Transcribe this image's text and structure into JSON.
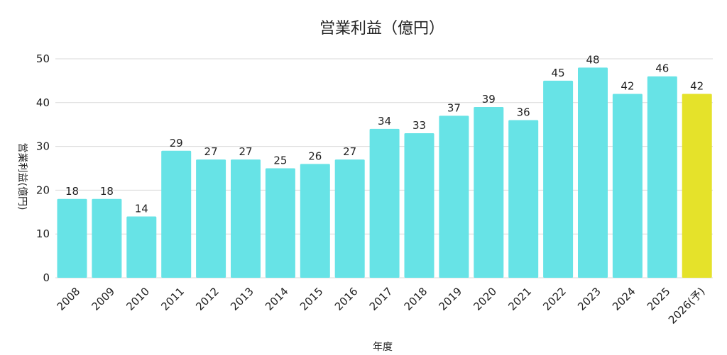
{
  "chart_data": {
    "type": "bar",
    "title": "営業利益（億円）",
    "xlabel": "年度",
    "ylabel": "営業利益(億円)",
    "ylim": [
      0,
      50
    ],
    "yticks": [
      0,
      10,
      20,
      30,
      40,
      50
    ],
    "grid": true,
    "categories": [
      "2008",
      "2009",
      "2010",
      "2011",
      "2012",
      "2013",
      "2014",
      "2015",
      "2016",
      "2017",
      "2018",
      "2019",
      "2020",
      "2021",
      "2022",
      "2023",
      "2024",
      "2025",
      "2026(予)"
    ],
    "values": [
      18,
      18,
      14,
      29,
      27,
      27,
      25,
      26,
      27,
      34,
      33,
      37,
      39,
      36,
      45,
      48,
      42,
      46,
      42
    ],
    "colors": {
      "actual": "#67e3e6",
      "forecast": "#e5e22a",
      "grid": "#d9d9d9"
    },
    "highlight_index": 18
  }
}
